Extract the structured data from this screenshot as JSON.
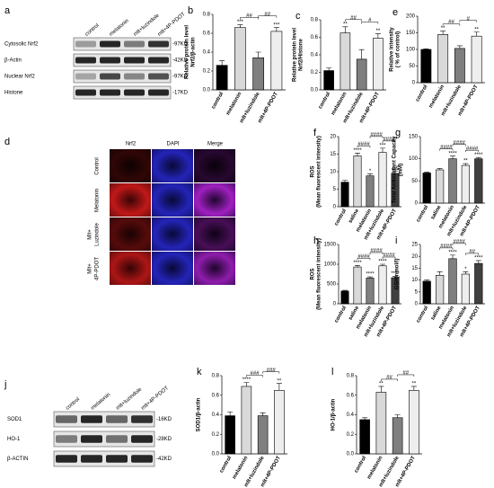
{
  "chart_data": [
    {
      "type": "bar",
      "letter": "b",
      "ylabel": [
        "Relative protein level",
        "Nrf2/β-actin"
      ],
      "categories": [
        "control",
        "melatonin",
        "mlt+luzindole",
        "mlt+4P-PDOT"
      ],
      "values": [
        0.26,
        0.66,
        0.34,
        0.62
      ],
      "errors": [
        0.05,
        0.03,
        0.06,
        0.04
      ],
      "colors": [
        "#000000",
        "#d9d9d9",
        "#7f7f7f",
        "#eeeeee"
      ],
      "ylim": [
        0,
        0.8
      ],
      "yticks": [
        {
          "value": 0,
          "label": "0.0"
        },
        0.2,
        0.4,
        0.6,
        0.8
      ],
      "annotations": [
        {
          "text": "***",
          "on": 1
        },
        {
          "text": "***",
          "on": 3
        },
        {
          "text": "##",
          "between": [
            1,
            2
          ]
        },
        {
          "text": "##",
          "between": [
            2,
            3
          ]
        }
      ]
    },
    {
      "type": "bar",
      "letter": "c",
      "ylabel": [
        "Relative protein level",
        "Nrf2/Histone"
      ],
      "categories": [
        "control",
        "melatonin",
        "mlt+luzindole",
        "mlt+4P-PDOT"
      ],
      "values": [
        0.22,
        0.65,
        0.35,
        0.59
      ],
      "errors": [
        0.03,
        0.07,
        0.11,
        0.05
      ],
      "colors": [
        "#000000",
        "#d9d9d9",
        "#7f7f7f",
        "#eeeeee"
      ],
      "ylim": [
        0,
        0.8
      ],
      "yticks": [
        {
          "value": 0,
          "label": "0.0"
        },
        0.2,
        0.4,
        0.6,
        0.8
      ],
      "annotations": [
        {
          "text": "**",
          "on": 1
        },
        {
          "text": "**",
          "on": 3
        },
        {
          "text": "##",
          "between": [
            1,
            2
          ]
        },
        {
          "text": "#",
          "between": [
            2,
            3
          ]
        }
      ]
    },
    {
      "type": "bar",
      "letter": "e",
      "ylabel": [
        "Relative intensity",
        "( % of control)"
      ],
      "categories": [
        "control",
        "melatonin",
        "mlt+luzindole",
        "mlt+4P-PDOT"
      ],
      "values": [
        100,
        145,
        103,
        140
      ],
      "errors": [
        2,
        10,
        8,
        12
      ],
      "colors": [
        "#000000",
        "#d9d9d9",
        "#7f7f7f",
        "#eeeeee"
      ],
      "ylim": [
        0,
        200
      ],
      "yticks": [
        0,
        50,
        100,
        150,
        200
      ],
      "annotations": [
        {
          "text": "**",
          "on": 1
        },
        {
          "text": "**",
          "on": 3
        },
        {
          "text": "##",
          "between": [
            1,
            2
          ]
        },
        {
          "text": "#",
          "between": [
            2,
            3
          ]
        }
      ]
    },
    {
      "type": "bar",
      "letter": "f",
      "ylabel": [
        "ROS",
        "(Mean fluorescent intensity)"
      ],
      "categories": [
        "control",
        "saline",
        "melatonin",
        "mlt+luzindole",
        "mlt+4P-PDOT"
      ],
      "values": [
        7,
        14.5,
        8.8,
        15.5,
        9.5
      ],
      "errors": [
        0.5,
        0.8,
        0.6,
        1.2,
        0.7
      ],
      "colors": [
        "#000000",
        "#d9d9d9",
        "#7f7f7f",
        "#eeeeee",
        "#404040"
      ],
      "ylim": [
        0,
        20
      ],
      "yticks": [
        0,
        5,
        10,
        15,
        20
      ],
      "annotations": [
        {
          "text": "****",
          "on": 1
        },
        {
          "text": "*",
          "on": 2
        },
        {
          "text": "***",
          "on": 3
        },
        {
          "text": "&&",
          "on": 4
        },
        {
          "text": "####",
          "between": [
            1,
            2
          ]
        },
        {
          "text": "####",
          "between": [
            2,
            3
          ]
        },
        {
          "text": "####",
          "between": [
            3,
            4
          ]
        }
      ]
    },
    {
      "type": "bar",
      "letter": "g",
      "ylabel": [
        "Total Antioxidant Capacity",
        "(mM)"
      ],
      "categories": [
        "control",
        "saline",
        "melatonin",
        "mlt+luzindole",
        "mlt+4P-PDOT"
      ],
      "values": [
        68,
        75,
        100,
        85,
        100
      ],
      "errors": [
        2,
        3,
        6,
        4,
        3
      ],
      "colors": [
        "#000000",
        "#d9d9d9",
        "#7f7f7f",
        "#eeeeee",
        "#404040"
      ],
      "ylim": [
        0,
        150
      ],
      "yticks": [
        0,
        50,
        100,
        150
      ],
      "annotations": [
        {
          "text": "****",
          "on": 2
        },
        {
          "text": "**",
          "on": 3
        },
        {
          "text": "****",
          "on": 4
        },
        {
          "text": "####",
          "between": [
            1,
            2
          ]
        },
        {
          "text": "####",
          "between": [
            2,
            3
          ]
        },
        {
          "text": "####",
          "between": [
            3,
            4
          ]
        }
      ]
    },
    {
      "type": "bar",
      "letter": "h",
      "ylabel": [
        "ROS",
        "(Mean fluorescent intensity)"
      ],
      "categories": [
        "control",
        "saline",
        "melatonin",
        "mlt+luzindole",
        "mlt+4P-PDOT"
      ],
      "values": [
        320,
        930,
        650,
        960,
        660
      ],
      "errors": [
        20,
        40,
        30,
        40,
        30
      ],
      "colors": [
        "#000000",
        "#d9d9d9",
        "#7f7f7f",
        "#eeeeee",
        "#404040"
      ],
      "ylim": [
        0,
        1500
      ],
      "yticks": [
        0,
        500,
        1000,
        1500
      ],
      "annotations": [
        {
          "text": "****",
          "on": 1
        },
        {
          "text": "****",
          "on": 2
        },
        {
          "text": "****",
          "on": 3
        },
        {
          "text": "****",
          "on": 4
        },
        {
          "text": "####",
          "between": [
            1,
            2
          ]
        },
        {
          "text": "####",
          "between": [
            2,
            3
          ]
        },
        {
          "text": "####",
          "between": [
            3,
            4
          ]
        }
      ]
    },
    {
      "type": "bar",
      "letter": "i",
      "ylabel": [
        "GSH(nmol/l)"
      ],
      "categories": [
        "control",
        "saline",
        "melatonin",
        "mlt+luzindole",
        "mlt+4P-PDOT"
      ],
      "values": [
        9.5,
        12,
        19,
        12.5,
        17
      ],
      "errors": [
        0.5,
        1.5,
        1.5,
        1,
        1.2
      ],
      "colors": [
        "#000000",
        "#d9d9d9",
        "#7f7f7f",
        "#eeeeee",
        "#404040"
      ],
      "ylim": [
        0,
        25
      ],
      "yticks": [
        0,
        5,
        10,
        15,
        20,
        25
      ],
      "annotations": [
        {
          "text": "****",
          "on": 2
        },
        {
          "text": "*",
          "on": 3
        },
        {
          "text": "****",
          "on": 4
        },
        {
          "text": "####",
          "between": [
            1,
            2
          ]
        },
        {
          "text": "####",
          "between": [
            2,
            3
          ]
        },
        {
          "text": "##",
          "between": [
            3,
            4
          ]
        }
      ]
    },
    {
      "type": "bar",
      "letter": "k",
      "ylabel": [
        "SOD1/β-actin"
      ],
      "categories": [
        "control",
        "melatonin",
        "mlt+luzindole",
        "mlt+4P-PDOT"
      ],
      "values": [
        0.39,
        0.69,
        0.39,
        0.65
      ],
      "errors": [
        0.04,
        0.04,
        0.03,
        0.07
      ],
      "colors": [
        "#000000",
        "#d9d9d9",
        "#7f7f7f",
        "#eeeeee"
      ],
      "ylim": [
        0,
        0.8
      ],
      "yticks": [
        {
          "value": 0,
          "label": "0.0"
        },
        0.2,
        0.4,
        0.6,
        0.8
      ],
      "annotations": [
        {
          "text": "****",
          "on": 1
        },
        {
          "text": "**",
          "on": 3
        },
        {
          "text": "###",
          "between": [
            1,
            2
          ]
        },
        {
          "text": "###",
          "between": [
            2,
            3
          ]
        }
      ]
    },
    {
      "type": "bar",
      "letter": "l",
      "ylabel": [
        "HO-1/β-actin"
      ],
      "categories": [
        "control",
        "melatonin",
        "mlt+luzindole",
        "mlt+4P-PDOT"
      ],
      "values": [
        0.35,
        0.63,
        0.37,
        0.65
      ],
      "errors": [
        0.02,
        0.06,
        0.03,
        0.04
      ],
      "colors": [
        "#000000",
        "#d9d9d9",
        "#7f7f7f",
        "#eeeeee"
      ],
      "ylim": [
        0,
        0.8
      ],
      "yticks": [
        {
          "value": 0,
          "label": "0.0"
        },
        0.2,
        0.4,
        0.6,
        0.8
      ],
      "annotations": [
        {
          "text": "**",
          "on": 1
        },
        {
          "text": "**",
          "on": 3
        },
        {
          "text": "##",
          "between": [
            1,
            2
          ]
        },
        {
          "text": "##",
          "between": [
            2,
            3
          ]
        }
      ]
    }
  ],
  "blot_a": {
    "letter": "a",
    "lanes": [
      "control",
      "melatonin",
      "mlt+luzindole",
      "mlt+4P-PDOT"
    ],
    "rows": [
      {
        "label": "Cytosolic Nrf2",
        "size": "-97KD"
      },
      {
        "label": "β-Actin",
        "size": "-42KD"
      },
      {
        "label": "Nuclear Nrf2",
        "size": "-97KD"
      },
      {
        "label": "Histone",
        "size": "-17KD"
      }
    ]
  },
  "micrograph_d": {
    "letter": "d",
    "columns": [
      "Nrf2",
      "DAPI",
      "Merge"
    ],
    "rows": [
      [
        "Control"
      ],
      [
        "Melatonin"
      ],
      [
        "Mlt+",
        "Luzindole"
      ],
      [
        "Mlt+",
        "4P-PDOT"
      ]
    ]
  },
  "blot_j": {
    "letter": "j",
    "lanes": [
      "control",
      "melatonin",
      "mlt+luzindole",
      "mlt+4P-PDOT"
    ],
    "rows": [
      {
        "label": "SOD1",
        "size": "-16KD"
      },
      {
        "label": "HO-1",
        "size": "-28KD"
      },
      {
        "label": "β-ACTIN",
        "size": "-42KD"
      }
    ]
  }
}
